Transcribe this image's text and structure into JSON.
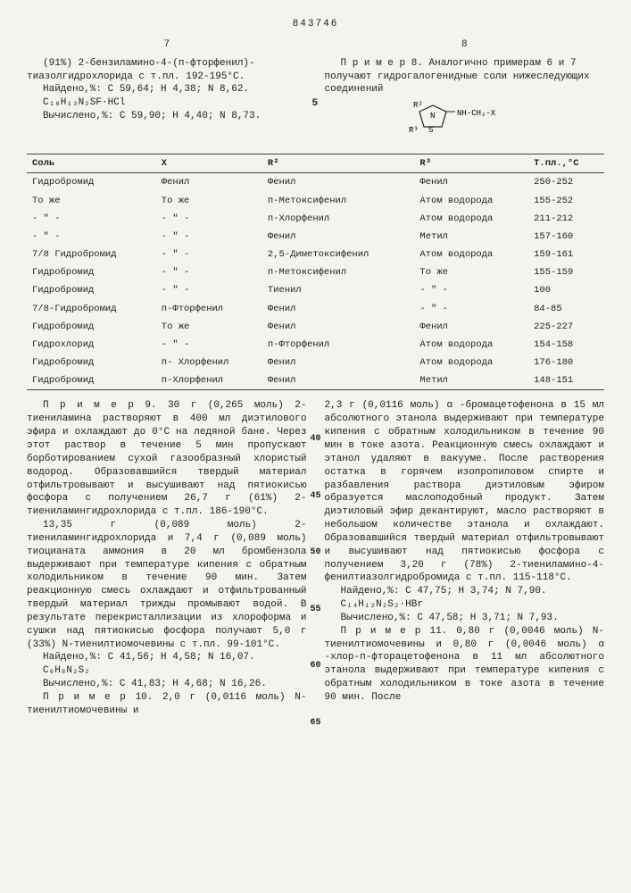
{
  "doc_number": "843746",
  "left_page": "7",
  "right_page": "8",
  "top_left_text": "(91%) 2-бензиламино-4-(п-фторфенил)-тиазолгидрохлорида с т.пл. 192-195°С.",
  "top_left_found": "Найдено,%: С 59,64; Н 4,38; N 8,62.",
  "top_left_formula": "C₁₆H₁₃N₂SF·HCl",
  "top_left_calc": "Вычислено,%: С 59,90; Н 4,40; N 8,73.",
  "top_right_text": "П р и м е р  8. Аналогично примерам 6 и 7 получают гидрогалогенидные соли нижеследующих соединений",
  "marker5": "5",
  "structure_labels": {
    "r2": "R²",
    "r3": "R³",
    "tail": "NH-CH₂-X"
  },
  "table": {
    "headers": [
      "Соль",
      "X",
      "R²",
      "R³",
      "Т.пл.,°С"
    ],
    "rows": [
      [
        "Гидробромид",
        "Фенил",
        "Фенил",
        "Фенил",
        "250-252"
      ],
      [
        "То же",
        "То же",
        "п-Метоксифенил",
        "Атом водорода",
        "155-252"
      ],
      [
        "- \" -",
        "- \" -",
        "п-Хлорфенил",
        "Атом водорода",
        "211-212"
      ],
      [
        "- \" -",
        "- \" -",
        "Фенил",
        "Метил",
        "157-160"
      ],
      [
        "7/8 Гидробромид",
        "- \" -",
        "2,5-Диметоксифенил",
        "Атом водорода",
        "159-161"
      ],
      [
        "Гидробромид",
        "- \" -",
        "п-Метоксифенил",
        "То же",
        "155-159"
      ],
      [
        "Гидробромид",
        "- \" -",
        "Тиенил",
        "- \" -",
        "100"
      ],
      [
        "7/8-Гидробромид",
        "п-Фторфенил",
        "Фенил",
        "- \" -",
        "84-85"
      ],
      [
        "Гидробромид",
        "То же",
        "Фенил",
        "Фенил",
        "225-227"
      ],
      [
        "Гидрохлорид",
        "- \" -",
        "п-Фторфенил",
        "Атом водорода",
        "154-158"
      ],
      [
        "Гидробромид",
        "п- Хлорфенил",
        "Фенил",
        "Атом водорода",
        "176-180"
      ],
      [
        "Гидробромид",
        "п-Хлорфенил",
        "Фенил",
        "Метил",
        "148-151"
      ]
    ]
  },
  "left_body_1": "П р и м е р  9. 30 г (0,265 моль) 2-тиениламина растворяют в 400 мл диэтилового эфира и охлаждают до 0°С на ледяной бане. Через этот раствор в течение 5 мин пропускают борботированием сухой газообразный хлористый водород. Образовавшийся твердый материал отфильтровывают и высушивают над пятиокисью фосфора с получением 26,7 г (61%) 2-тиениламингидрохлорида с т.пл. 186-190°С.",
  "left_body_2": "13,35 г (0,089 моль) 2-тиениламингидрохлорида и 7,4 г (0,089 моль) тиоцианата аммония в 20 мл бромбензола выдерживают при температуре кипения с обратным холодильником в течение 90 мин. Затем реакционную смесь охлаждают и отфильтрованный твердый материал трижды промывают водой. В результате перекристаллизации из хлороформа и сушки над пятиокисью фосфора получают 5,0 г (33%) N-тиенилтиомочевины с т.пл. 99-101°С.",
  "left_found2": "Найдено,%: С 41,56; Н 4,58; N 16,07.",
  "left_formula2": "C₆H₈N₂S₂",
  "left_calc2": "Вычислено,%: С 41,83; Н 4,68; N 16,26.",
  "left_body_3": "П р и м е р  10. 2,0 г (0,0116 моль) N-тиенилтиомочевины и",
  "right_body_1": "2,3 г (0,0116 моль) α -бромацетофенона в 15 мл абсолютного этанола выдерживают при температуре кипения с обратным холодильником в течение 90 мин в токе азота. Реакционную смесь охлаждают и этанол удаляют в вакууме. После растворения остатка в горячем изопропиловом спирте и разбавления раствора диэтиловым эфиром образуется маслоподобный продукт. Затем диэтиловый эфир декантируют, масло растворяют в небольшом количестве этанола и охлаждают. Образовавшийся твердый материал отфильтровывают и высушивают над пятиокисью фосфора с получением 3,20 г (78%) 2-тиениламино-4-фенилтиазолгидробромида с т.пл. 115-118°С.",
  "right_found": "Найдено,%: С 47,75; Н 3,74; N 7,90.",
  "right_formula": "C₁₄H₁₂N₂S₂·HBr",
  "right_calc": "Вычислено,%: С 47,58; Н 3,71; N 7,93.",
  "right_body_2": "П р и м е р  11. 0,80 г (0,0046 моль) N-тиенилтиомочевины и 0,80 г (0,0046 моль) α -хлор-п-фторацетофенона в 11 мл абсолютного этанола выдерживают при температуре кипения с обратным холодильником в токе азота в течение 90 мин. После",
  "markers": {
    "m40": "40",
    "m45": "45",
    "m50": "50",
    "m55": "55",
    "m60": "60",
    "m65": "65"
  }
}
